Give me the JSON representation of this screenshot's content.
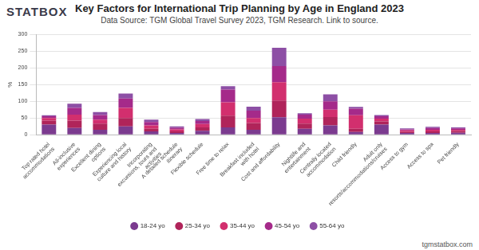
{
  "page": {
    "logo": "STATBOX",
    "footer": "tgmstatbox.com"
  },
  "chart_data": {
    "type": "bar",
    "stacked": true,
    "title": "Key Factors for International Trip Planning by Age in England 2023",
    "subtitle": "Data Source: TGM Global Travel Survey 2023, TGM Research. Link to source.",
    "y_label": "%",
    "categories": [
      "Top rated hotel accommodations",
      "All-inclusive experiences",
      "Excellent dining options",
      "Experiencing local culture and history",
      "Incorporating excursions, tours and activities",
      "A detailed schedule itinerary",
      "Flexible schedule",
      "Free time to relax",
      "Breakfast included with hotel",
      "Cost and affordability",
      "Nightlife and entertainment",
      "Centrally located accommodation",
      "Child friendly",
      "Adult only resorts/accommodations/cruises",
      "Access to gym",
      "Access to spa",
      "Pet friendly"
    ],
    "series": [
      {
        "name": "18-24 yo",
        "color": "#7b3b8f",
        "values": [
          30,
          20,
          15,
          25,
          10,
          5,
          12,
          22,
          15,
          52,
          18,
          28,
          8,
          30,
          5,
          5,
          6
        ]
      },
      {
        "name": "25-34 yo",
        "color": "#b0245a",
        "values": [
          12,
          22,
          18,
          25,
          8,
          5,
          10,
          35,
          20,
          50,
          15,
          25,
          10,
          10,
          4,
          5,
          5
        ]
      },
      {
        "name": "35-44 yo",
        "color": "#d22f6e",
        "values": [
          8,
          18,
          12,
          30,
          10,
          6,
          10,
          40,
          15,
          55,
          15,
          22,
          40,
          8,
          4,
          5,
          4
        ]
      },
      {
        "name": "45-54 yo",
        "color": "#a52a8a",
        "values": [
          5,
          20,
          14,
          28,
          10,
          5,
          9,
          38,
          22,
          48,
          12,
          25,
          20,
          7,
          3,
          5,
          4
        ]
      },
      {
        "name": "55-64 yo",
        "color": "#8d4fa5",
        "values": [
          3,
          13,
          9,
          15,
          7,
          4,
          6,
          10,
          12,
          55,
          4,
          21,
          5,
          4,
          3,
          4,
          3
        ]
      }
    ],
    "ylim": [
      0,
      300
    ],
    "yticks": [
      0,
      50,
      100,
      150,
      200,
      250,
      300
    ],
    "grid": true,
    "legend": "bottom"
  }
}
